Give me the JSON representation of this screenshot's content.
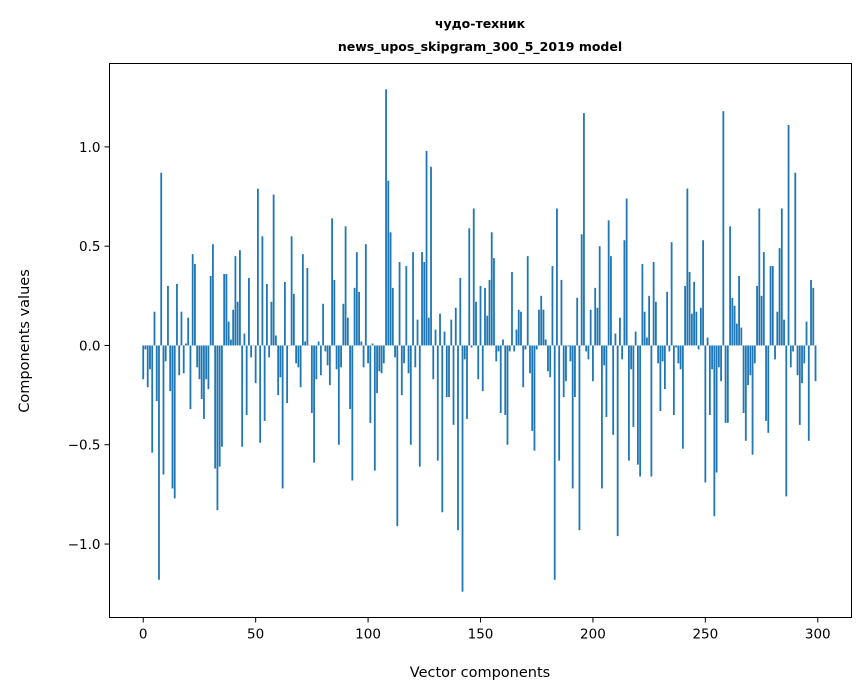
{
  "chart_data": {
    "type": "bar",
    "title": "чудо-техник",
    "subtitle": "news_upos_skipgram_300_5_2019 model",
    "xlabel": "Vector components",
    "ylabel": "Components values",
    "xlim": [
      -15,
      315
    ],
    "ylim": [
      -1.37,
      1.42
    ],
    "xticks": [
      0,
      50,
      100,
      150,
      200,
      250,
      300
    ],
    "xtick_labels": [
      "0",
      "50",
      "100",
      "150",
      "200",
      "250",
      "300"
    ],
    "yticks": [
      -1.0,
      -0.5,
      0.0,
      0.5,
      1.0
    ],
    "ytick_labels": [
      "−1.0",
      "−0.5",
      "0.0",
      "0.5",
      "1.0"
    ],
    "grid": false,
    "color": "#1f77b4",
    "values": [
      -0.17,
      -0.02,
      -0.21,
      -0.12,
      -0.54,
      0.17,
      -0.28,
      -1.18,
      0.87,
      -0.65,
      -0.08,
      0.3,
      -0.23,
      -0.72,
      -0.77,
      0.31,
      -0.15,
      0.17,
      -0.14,
      0.01,
      0.14,
      -0.32,
      0.46,
      0.41,
      -0.11,
      -0.17,
      -0.27,
      -0.37,
      -0.17,
      -0.22,
      0.35,
      0.51,
      -0.62,
      -0.83,
      -0.61,
      -0.51,
      0.36,
      0.36,
      0.12,
      0.03,
      0.18,
      0.45,
      0.22,
      0.48,
      -0.51,
      0.06,
      -0.35,
      0.34,
      -0.06,
      0.0,
      -0.19,
      0.79,
      -0.49,
      0.55,
      -0.38,
      0.31,
      -0.06,
      0.22,
      0.76,
      0.05,
      -0.25,
      -0.16,
      -0.72,
      0.32,
      -0.29,
      0.0,
      0.55,
      0.26,
      -0.09,
      -0.11,
      -0.21,
      0.46,
      0.02,
      0.39,
      0.0,
      -0.34,
      -0.59,
      -0.17,
      0.02,
      -0.15,
      0.21,
      -0.03,
      -0.1,
      -0.2,
      0.64,
      0.33,
      -0.12,
      -0.5,
      -0.11,
      0.21,
      0.6,
      0.14,
      -0.32,
      -0.68,
      0.29,
      0.47,
      0.27,
      0.02,
      -0.11,
      0.51,
      -0.09,
      -0.39,
      0.01,
      -0.63,
      -0.24,
      -0.13,
      -0.14,
      -0.09,
      1.29,
      0.83,
      0.57,
      0.29,
      -0.06,
      -0.91,
      0.42,
      -0.25,
      -0.09,
      0.4,
      -0.14,
      -0.5,
      0.47,
      -0.11,
      0.13,
      -0.61,
      0.47,
      0.42,
      0.98,
      0.14,
      0.9,
      -0.17,
      0.08,
      -0.58,
      0.16,
      -0.84,
      0.07,
      -0.26,
      -0.26,
      0.13,
      -0.4,
      0.19,
      -0.93,
      0.34,
      -1.24,
      -0.07,
      -0.37,
      0.59,
      -0.01,
      0.69,
      0.22,
      -0.17,
      0.3,
      -0.23,
      0.29,
      0.15,
      0.33,
      0.57,
      0.44,
      -0.08,
      -0.03,
      -0.34,
      0.03,
      -0.35,
      -0.5,
      -0.03,
      0.37,
      -0.03,
      0.08,
      0.18,
      0.17,
      -0.21,
      -0.02,
      0.45,
      -0.14,
      -0.43,
      -0.53,
      -0.02,
      0.18,
      0.25,
      0.18,
      0.03,
      -0.13,
      -0.16,
      0.4,
      -1.18,
      0.69,
      -0.58,
      0.33,
      -0.26,
      -0.18,
      -0.005,
      -0.08,
      -0.72,
      -0.26,
      0.24,
      -0.93,
      0.56,
      1.17,
      -0.03,
      -0.07,
      0.18,
      -0.18,
      0.29,
      0.19,
      0.5,
      -0.72,
      -0.1,
      -0.36,
      0.63,
      0.45,
      -0.45,
      0.06,
      -0.96,
      0.14,
      -0.07,
      0.53,
      0.74,
      -0.58,
      -0.12,
      -0.41,
      0.07,
      -0.6,
      -0.66,
      0.41,
      0.17,
      0.04,
      0.25,
      -0.66,
      0.42,
      0.22,
      -0.09,
      -0.33,
      -0.08,
      -0.22,
      0.27,
      -0.03,
      0.52,
      -0.35,
      -0.01,
      -0.09,
      -0.12,
      -0.52,
      0.3,
      0.79,
      0.37,
      0.16,
      0.32,
      0.17,
      -0.02,
      0.19,
      0.53,
      -0.69,
      0.04,
      -0.35,
      -0.12,
      -0.86,
      -0.64,
      -0.11,
      -0.18,
      1.18,
      -0.39,
      -0.39,
      0.6,
      0.24,
      0.2,
      0.11,
      0.35,
      0.09,
      -0.34,
      -0.48,
      -0.2,
      -0.15,
      -0.55,
      -0.09,
      0.3,
      0.69,
      0.25,
      0.47,
      -0.38,
      -0.44,
      0.4,
      0.4,
      -0.07,
      0.17,
      0.49,
      0.69,
      0.13,
      -0.76,
      1.11,
      -0.11,
      -0.03,
      0.87,
      -0.15,
      -0.4,
      -0.19,
      -0.09,
      0.12,
      -0.48,
      0.33,
      0.29,
      -0.18
    ]
  }
}
